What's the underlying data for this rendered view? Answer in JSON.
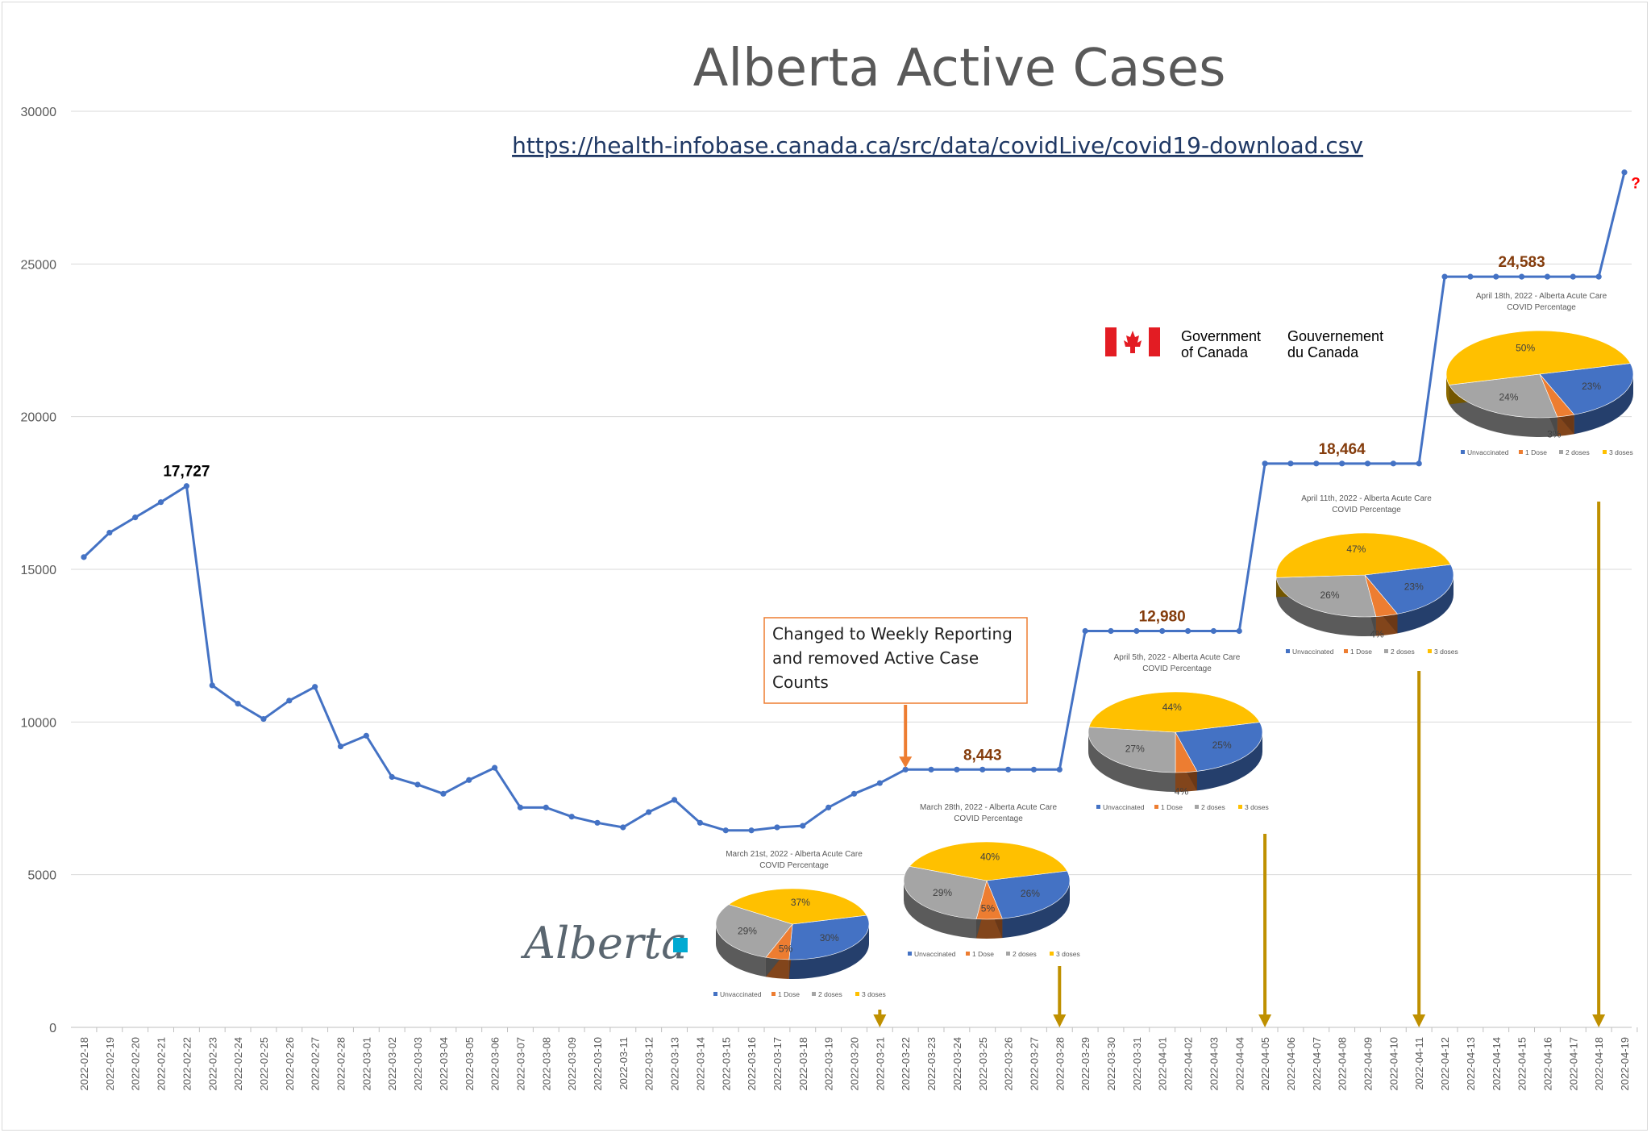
{
  "chart_data": {
    "type": "line",
    "title": "Alberta Active Cases",
    "subtitle": "https://health-infobase.canada.ca/src/data/covidLive/covid19-download.csv",
    "xlabel": "",
    "ylabel": "",
    "ylim": [
      0,
      30000
    ],
    "y_ticks": [
      "0",
      "5000",
      "10000",
      "15000",
      "20000",
      "25000",
      "30000"
    ],
    "grid": "horizontal",
    "line_color": "#4472c4",
    "x": [
      "2022-02-18",
      "2022-02-19",
      "2022-02-20",
      "2022-02-21",
      "2022-02-22",
      "2022-02-23",
      "2022-02-24",
      "2022-02-25",
      "2022-02-26",
      "2022-02-27",
      "2022-02-28",
      "2022-03-01",
      "2022-03-02",
      "2022-03-03",
      "2022-03-04",
      "2022-03-05",
      "2022-03-06",
      "2022-03-07",
      "2022-03-08",
      "2022-03-09",
      "2022-03-10",
      "2022-03-11",
      "2022-03-12",
      "2022-03-13",
      "2022-03-14",
      "2022-03-15",
      "2022-03-16",
      "2022-03-17",
      "2022-03-18",
      "2022-03-19",
      "2022-03-20",
      "2022-03-21",
      "2022-03-22",
      "2022-03-23",
      "2022-03-24",
      "2022-03-25",
      "2022-03-26",
      "2022-03-27",
      "2022-03-28",
      "2022-03-29",
      "2022-03-30",
      "2022-03-31",
      "2022-04-01",
      "2022-04-02",
      "2022-04-03",
      "2022-04-04",
      "2022-04-05",
      "2022-04-06",
      "2022-04-07",
      "2022-04-08",
      "2022-04-09",
      "2022-04-10",
      "2022-04-11",
      "2022-04-12",
      "2022-04-13",
      "2022-04-14",
      "2022-04-15",
      "2022-04-16",
      "2022-04-17",
      "2022-04-18",
      "2022-04-19"
    ],
    "series": [
      {
        "values": [
          15400,
          16200,
          16700,
          17200,
          17727,
          11200,
          10600,
          10100,
          10700,
          11150,
          9200,
          9550,
          8200,
          7950,
          7650,
          8100,
          8500,
          7200,
          7200,
          6900,
          6700,
          6550,
          7050,
          7450,
          6700,
          6450,
          6450,
          6550,
          6600,
          7200,
          7650,
          8000,
          8443,
          8443,
          8443,
          8443,
          8443,
          8443,
          8443,
          12980,
          12980,
          12980,
          12980,
          12980,
          12980,
          12980,
          18464,
          18464,
          18464,
          18464,
          18464,
          18464,
          18464,
          24583,
          24583,
          24583,
          24583,
          24583,
          24583,
          24583,
          28000
        ]
      }
    ],
    "annotations": [
      {
        "text": "17,727",
        "x": "2022-02-22",
        "y": 17727,
        "color": "#000000"
      },
      {
        "text": "8,443",
        "x": "2022-03-25",
        "y": 8443,
        "color": "#843c0c"
      },
      {
        "text": "12,980",
        "x": "2022-04-01",
        "y": 12980,
        "color": "#843c0c"
      },
      {
        "text": "18,464",
        "x": "2022-04-08",
        "y": 18464,
        "color": "#843c0c"
      },
      {
        "text": "24,583",
        "x": "2022-04-15",
        "y": 24583,
        "color": "#843c0c"
      },
      {
        "text": "?",
        "x": "2022-04-19",
        "y": 28000,
        "color": "#ff0000"
      }
    ],
    "note": {
      "lines": [
        "Changed to Weekly Reporting",
        "and removed Active Case",
        "Counts"
      ],
      "points_to": "2022-03-22",
      "arrow_color": "#ed7d31"
    },
    "week_markers": {
      "dates": [
        "2022-03-21",
        "2022-03-28",
        "2022-04-05",
        "2022-04-11",
        "2022-04-18"
      ],
      "color": "#bf9000"
    },
    "pie_legend": [
      "Unvaccinated",
      "1 Dose",
      "2 doses",
      "3 doses"
    ],
    "pie_colors": {
      "Unvaccinated": "#4472c4",
      "1 Dose": "#ed7d31",
      "2 doses": "#a5a5a5",
      "3 doses": "#ffc000"
    },
    "pies": [
      {
        "title_lines": [
          "March 21st, 2022 - Alberta Acute Care",
          "COVID Percentage"
        ],
        "values": [
          30,
          5,
          29,
          37
        ],
        "labels": [
          "30%",
          "5%",
          "29%",
          "37%"
        ]
      },
      {
        "title_lines": [
          "March 28th, 2022 - Alberta Acute Care",
          "COVID Percentage"
        ],
        "values": [
          26,
          5,
          29,
          40
        ],
        "labels": [
          "26%",
          "5%",
          "29%",
          "40%"
        ]
      },
      {
        "title_lines": [
          "April 5th, 2022 - Alberta Acute Care",
          "COVID Percentage"
        ],
        "values": [
          25,
          4,
          27,
          44
        ],
        "labels": [
          "25%",
          "4%",
          "27%",
          "44%"
        ]
      },
      {
        "title_lines": [
          "April 11th, 2022 - Alberta Acute Care",
          "COVID Percentage"
        ],
        "values": [
          23,
          4,
          26,
          47
        ],
        "labels": [
          "23%",
          "4%",
          "26%",
          "47%"
        ]
      },
      {
        "title_lines": [
          "April 18th, 2022 - Alberta Acute Care",
          "COVID Percentage"
        ],
        "values": [
          23,
          3,
          24,
          50
        ],
        "labels": [
          "23%",
          "3%",
          "24%",
          "50%"
        ]
      }
    ]
  },
  "logos": {
    "government": [
      "Government",
      "of Canada"
    ],
    "gouvernement": [
      "Gouvernement",
      "du Canada"
    ],
    "alberta": "Alberta"
  }
}
